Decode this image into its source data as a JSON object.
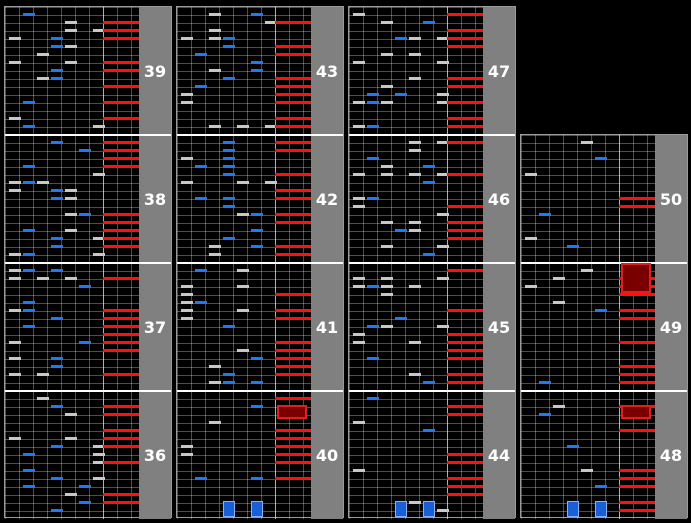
{
  "columns": [
    {
      "measures": [
        39,
        38,
        37,
        36
      ]
    },
    {
      "measures": [
        43,
        42,
        41,
        40
      ]
    },
    {
      "measures": [
        47,
        46,
        45,
        44
      ]
    },
    {
      "measures": [
        50,
        49,
        48
      ]
    }
  ],
  "colors": {
    "white_note": "#c8c8c8",
    "blue_note": "#1e7af0",
    "scratch_note": "#ff1010",
    "measure_number_bg": "#808080"
  }
}
